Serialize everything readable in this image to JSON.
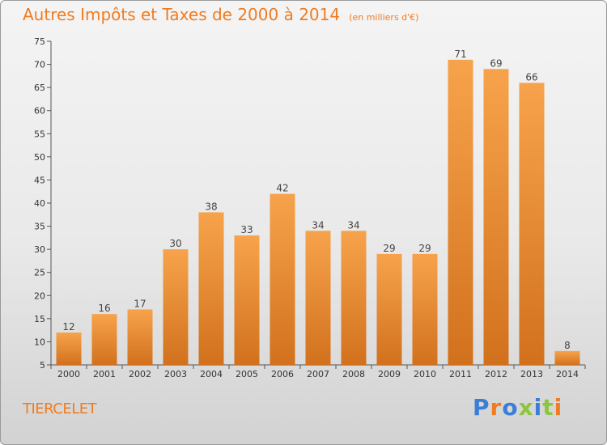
{
  "title": "Autres Impôts et Taxes de 2000 à 2014",
  "subtitle": "(en milliers d'€)",
  "commune": "TIERCELET",
  "brand": "Proxiti",
  "colors": {
    "bar_light": "#f7a34c",
    "bar_dark": "#d2711d",
    "text_accent": "#f07b21",
    "brand_letters": [
      "#3a7fd5",
      "#f07b21",
      "#3a7fd5",
      "#8cc63f",
      "#3a7fd5",
      "#8cc63f",
      "#f07b21"
    ]
  },
  "chart_data": {
    "type": "bar",
    "categories": [
      "2000",
      "2001",
      "2002",
      "2003",
      "2004",
      "2005",
      "2006",
      "2007",
      "2008",
      "2009",
      "2010",
      "2011",
      "2012",
      "2013",
      "2014"
    ],
    "values": [
      12,
      16,
      17,
      30,
      38,
      33,
      42,
      34,
      34,
      29,
      29,
      71,
      69,
      66,
      8
    ],
    "ylim": [
      5,
      75
    ],
    "yticks": [
      5,
      10,
      15,
      20,
      25,
      30,
      35,
      40,
      45,
      50,
      55,
      60,
      65,
      70,
      75
    ],
    "grid": false,
    "data_labels": true
  }
}
